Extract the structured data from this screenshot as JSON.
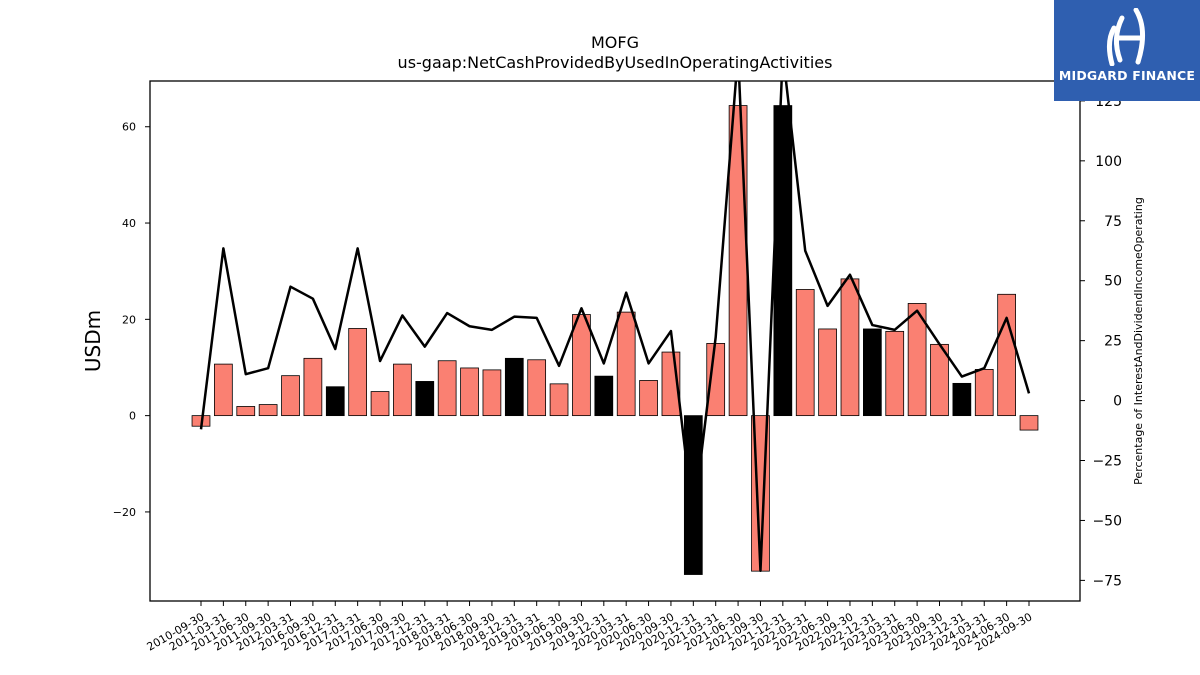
{
  "chart_data": {
    "type": "bar",
    "title": "MOFG",
    "subtitle": "us-gaap:NetCashProvidedByUsedInOperatingActivities",
    "ylabel": "USDm",
    "y2label": "Percentage of InterestAndDividendIncomeOperating",
    "ylim": [
      -38.5,
      69.5
    ],
    "y2lim": [
      -83.6,
      133.3
    ],
    "yticks": [
      -20,
      0,
      20,
      40,
      60
    ],
    "y2ticks": [
      -75,
      -50,
      -25,
      0,
      25,
      50,
      75,
      100,
      125
    ],
    "categories": [
      "2010-09-30",
      "2011-03-31",
      "2011-06-30",
      "2011-09-30",
      "2012-03-31",
      "2016-09-30",
      "2016-12-31",
      "2017-03-31",
      "2017-06-30",
      "2017-09-30",
      "2017-12-31",
      "2018-03-31",
      "2018-06-30",
      "2018-09-30",
      "2018-12-31",
      "2019-03-31",
      "2019-06-30",
      "2019-09-30",
      "2019-12-31",
      "2020-03-31",
      "2020-06-30",
      "2020-09-30",
      "2020-12-31",
      "2021-03-31",
      "2021-06-30",
      "2021-09-30",
      "2021-12-31",
      "2022-03-31",
      "2022-06-30",
      "2022-09-30",
      "2022-12-31",
      "2023-03-31",
      "2023-06-30",
      "2023-09-30",
      "2023-12-31",
      "2024-03-31",
      "2024-06-30",
      "2024-09-30"
    ],
    "series": [
      {
        "kind": "bar",
        "axis": "left",
        "values": [
          -2.2,
          10.7,
          1.9,
          2.3,
          8.3,
          11.9,
          6.0,
          18.1,
          5.0,
          10.7,
          7.1,
          11.4,
          9.9,
          9.5,
          11.9,
          11.6,
          6.6,
          21.0,
          8.2,
          21.5,
          7.3,
          13.2,
          -33.0,
          15.0,
          64.4,
          -32.3,
          64.4,
          26.2,
          18.0,
          28.4,
          18.0,
          17.5,
          23.3,
          14.8,
          6.7,
          9.6,
          25.2,
          -3.0
        ],
        "highlight": [
          false,
          false,
          false,
          false,
          false,
          false,
          true,
          false,
          false,
          false,
          true,
          false,
          false,
          false,
          true,
          false,
          false,
          false,
          true,
          false,
          false,
          false,
          true,
          false,
          false,
          false,
          true,
          false,
          false,
          false,
          true,
          false,
          false,
          false,
          true,
          false,
          false,
          false
        ]
      },
      {
        "kind": "line",
        "axis": "right",
        "values": [
          -12,
          63.5,
          11,
          13.5,
          47.5,
          42.5,
          21.5,
          63.5,
          16.5,
          35.5,
          22.5,
          36.5,
          31,
          29.5,
          35,
          34.5,
          14.5,
          38.5,
          15.5,
          45,
          15.5,
          29,
          -49.5,
          26.5,
          145,
          -71,
          145,
          62.5,
          39.5,
          52.5,
          31.5,
          29.5,
          37.5,
          23.5,
          10,
          13.5,
          34.5,
          3
        ]
      }
    ],
    "colors": {
      "bar": "#fa8072",
      "bar_highlight": "#000000",
      "line": "#000000"
    },
    "grid": false
  },
  "logo": {
    "text": "MIDGARD FINANCE"
  }
}
